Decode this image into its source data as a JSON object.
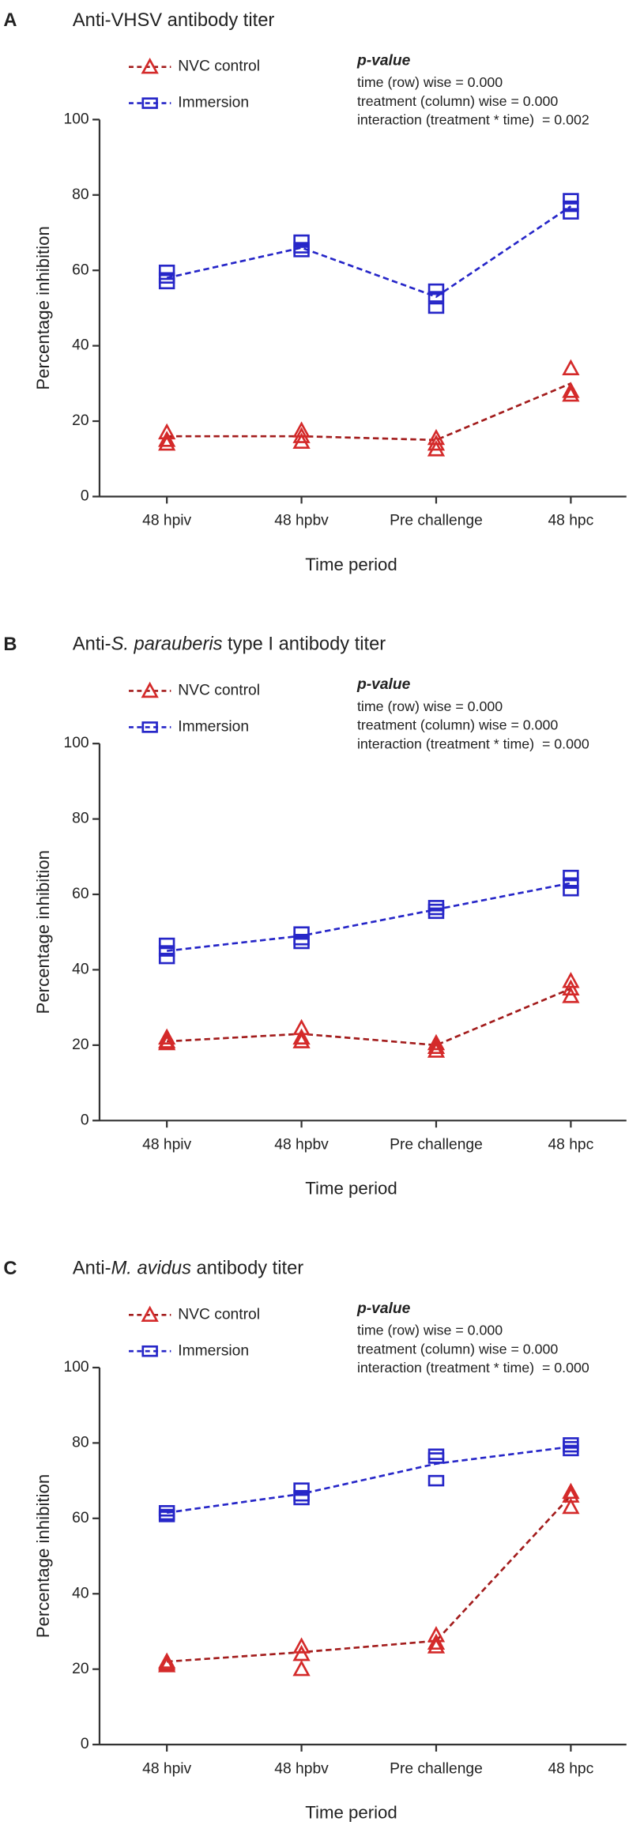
{
  "chart_data": [
    {
      "type": "line",
      "panel": "A",
      "title": [
        {
          "text": "Anti-VHSV antibody titer",
          "italic": false
        }
      ],
      "annotation_title": "p-value",
      "annotations": [
        "time (row) wise = 0.000",
        "treatment (column) wise = 0.000",
        "interaction (treatment * time)  = 0.002"
      ],
      "xlabel": "Time period",
      "ylabel": "Percentage inhibition",
      "categories": [
        "48 hpiv",
        "48 hpbv",
        "Pre challenge",
        "48 hpc"
      ],
      "ylim": [
        0,
        100
      ],
      "yticks": [
        0,
        20,
        40,
        60,
        80,
        100
      ],
      "series": [
        {
          "name": "NVC control",
          "marker": "triangle",
          "color": "#d42a2a",
          "line_color": "#a31d1d",
          "values": [
            16,
            16,
            15,
            30
          ],
          "replicates": [
            [
              17,
              15,
              14
            ],
            [
              17.5,
              16,
              14.5
            ],
            [
              15.5,
              14,
              12.5
            ],
            [
              34,
              28,
              27
            ]
          ]
        },
        {
          "name": "Immersion",
          "marker": "square",
          "color": "#2626c8",
          "line_color": "#2626c8",
          "values": [
            58,
            66,
            53,
            77
          ],
          "replicates": [
            [
              60,
              58,
              56.5
            ],
            [
              68,
              66,
              65
            ],
            [
              55,
              53,
              50
            ],
            [
              79,
              77,
              75
            ]
          ]
        }
      ]
    },
    {
      "type": "line",
      "panel": "B",
      "title": [
        {
          "text": "Anti-",
          "italic": false
        },
        {
          "text": "S. parauberis",
          "italic": true
        },
        {
          "text": " type I antibody titer",
          "italic": false
        }
      ],
      "annotation_title": "p-value",
      "annotations": [
        "time (row) wise = 0.000",
        "treatment (column) wise = 0.000",
        "interaction (treatment * time)  = 0.000"
      ],
      "xlabel": "Time period",
      "ylabel": "Percentage inhibition",
      "categories": [
        "48 hpiv",
        "48 hpbv",
        "Pre challenge",
        "48 hpc"
      ],
      "ylim": [
        0,
        100
      ],
      "yticks": [
        0,
        20,
        40,
        60,
        80,
        100
      ],
      "series": [
        {
          "name": "NVC control",
          "marker": "triangle",
          "color": "#d42a2a",
          "line_color": "#a31d1d",
          "values": [
            21,
            23,
            20,
            35
          ],
          "replicates": [
            [
              22,
              21,
              20.5
            ],
            [
              24.5,
              22,
              21
            ],
            [
              20.5,
              19.5,
              18.5
            ],
            [
              37,
              35,
              33
            ]
          ]
        },
        {
          "name": "Immersion",
          "marker": "square",
          "color": "#2626c8",
          "line_color": "#2626c8",
          "values": [
            45,
            49,
            56,
            63
          ],
          "replicates": [
            [
              47,
              45,
              43
            ],
            [
              50,
              48,
              47
            ],
            [
              57,
              56,
              55
            ],
            [
              65,
              63,
              61
            ]
          ]
        }
      ]
    },
    {
      "type": "line",
      "panel": "C",
      "title": [
        {
          "text": "Anti-",
          "italic": false
        },
        {
          "text": "M. avidus",
          "italic": true
        },
        {
          "text": " antibody titer",
          "italic": false
        }
      ],
      "annotation_title": "p-value",
      "annotations": [
        "time (row) wise = 0.000",
        "treatment (column) wise = 0.000",
        "interaction (treatment * time)  = 0.000"
      ],
      "xlabel": "Time period",
      "ylabel": "Percentage inhibition",
      "categories": [
        "48 hpiv",
        "48 hpbv",
        "Pre challenge",
        "48 hpc"
      ],
      "ylim": [
        0,
        100
      ],
      "yticks": [
        0,
        20,
        40,
        60,
        80,
        100
      ],
      "series": [
        {
          "name": "NVC control",
          "marker": "triangle",
          "color": "#d42a2a",
          "line_color": "#a31d1d",
          "values": [
            22,
            24.5,
            27.5,
            66
          ],
          "replicates": [
            [
              22,
              21.5,
              21
            ],
            [
              26,
              24,
              20
            ],
            [
              29,
              27,
              26
            ],
            [
              67,
              66,
              63
            ]
          ]
        },
        {
          "name": "Immersion",
          "marker": "square",
          "color": "#2626c8",
          "line_color": "#2626c8",
          "values": [
            61.5,
            66.5,
            74.5,
            79
          ],
          "replicates": [
            [
              62,
              61,
              60.5
            ],
            [
              68,
              66,
              65
            ],
            [
              77,
              76,
              70
            ],
            [
              80,
              79,
              78
            ]
          ]
        }
      ]
    }
  ]
}
